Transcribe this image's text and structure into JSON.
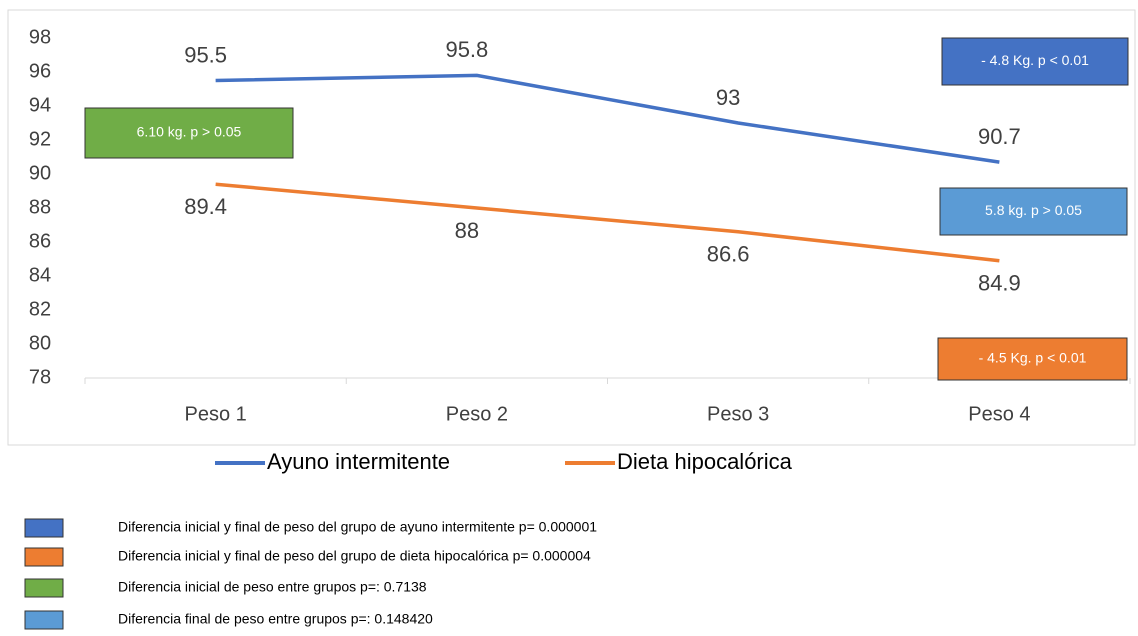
{
  "chart_data": {
    "type": "line",
    "categories": [
      "Peso 1",
      "Peso 2",
      "Peso 3",
      "Peso 4"
    ],
    "series": [
      {
        "name": "Ayuno intermitente",
        "color": "#4472c4",
        "values": [
          95.5,
          95.8,
          93,
          90.7
        ]
      },
      {
        "name": "Dieta hipocalórica",
        "color": "#ed7d31",
        "values": [
          89.4,
          88,
          86.6,
          84.9
        ]
      }
    ],
    "ylim": [
      78,
      98
    ],
    "yticks": [
      78,
      80,
      82,
      84,
      86,
      88,
      90,
      92,
      94,
      96,
      98
    ],
    "grid": false,
    "annotations": [
      {
        "text": "6.10 kg.  p > 0.05",
        "color": "#70ad47"
      },
      {
        "text": "- 4.8 Kg. p < 0.01",
        "color": "#4472c4"
      },
      {
        "text": "5.8 kg. p > 0.05",
        "color": "#5b9bd5"
      },
      {
        "text": "- 4.5 Kg. p < 0.01",
        "color": "#ed7d31"
      }
    ],
    "notes": [
      {
        "text": "Diferencia inicial y final de peso del grupo de ayuno intermitente p= 0.000001",
        "color": "#4472c4"
      },
      {
        "text": "Diferencia inicial y final de peso del grupo de dieta hipocalórica p= 0.000004",
        "color": "#ed7d31"
      },
      {
        "text": "Diferencia inicial de peso entre grupos p=: 0.7138",
        "color": "#70ad47"
      },
      {
        "text": "Diferencia final de peso entre grupos p=: 0.148420",
        "color": "#5b9bd5"
      }
    ]
  }
}
